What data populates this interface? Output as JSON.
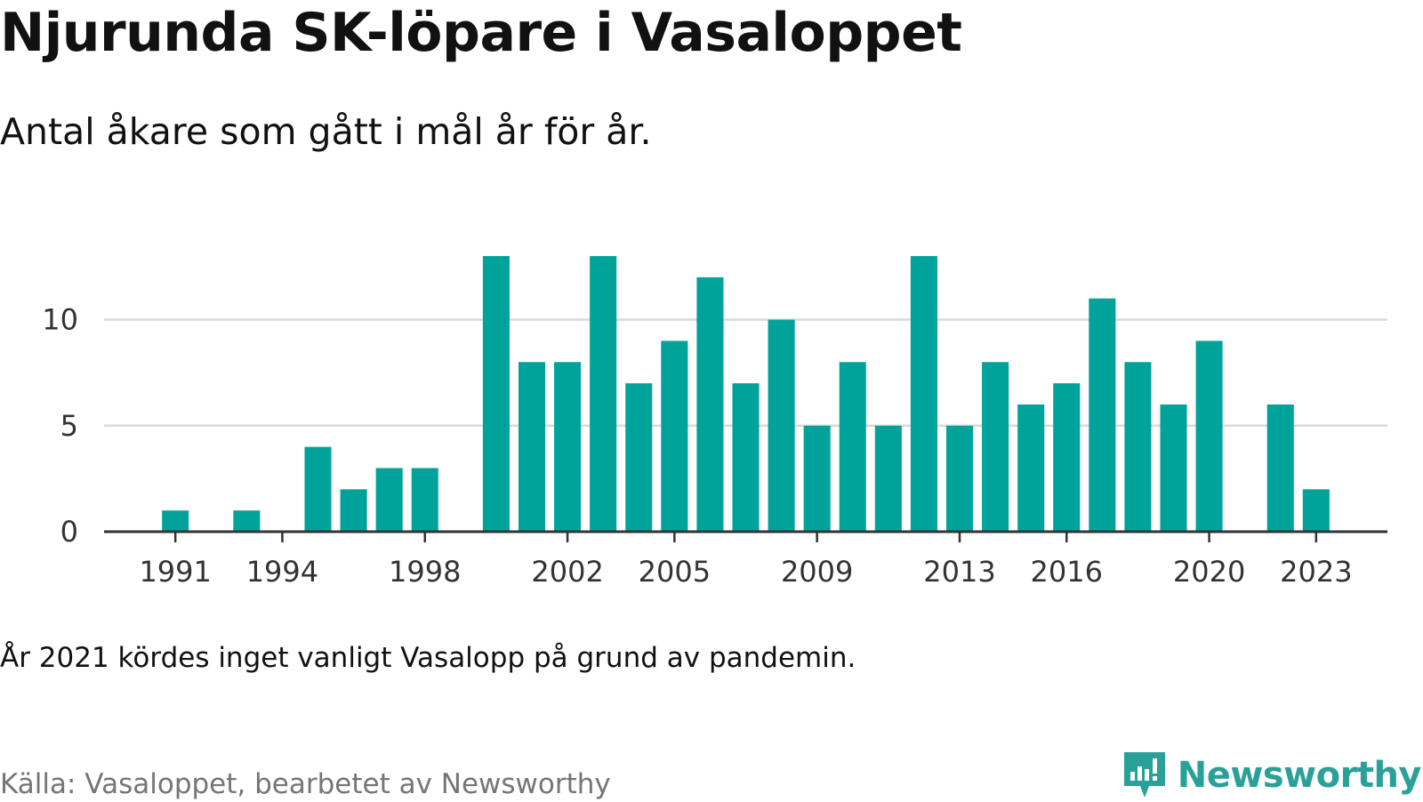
{
  "title": "Njurunda SK-löpare i Vasaloppet",
  "subtitle": "Antal åkare som gått i mål år för år.",
  "note": "År 2021 kördes inget vanligt Vasalopp på grund av pandemin.",
  "source": "Källa: Vasaloppet, bearbetet av Newsworthy",
  "brand": "Newsworthy",
  "colors": {
    "bar": "#00a39a",
    "grid": "#d9d9d9",
    "axis": "#333333",
    "brand": "#2aa198"
  },
  "chart_data": {
    "type": "bar",
    "x": [
      1991,
      1993,
      1995,
      1996,
      1997,
      1998,
      2000,
      2001,
      2002,
      2003,
      2004,
      2005,
      2006,
      2007,
      2008,
      2009,
      2010,
      2011,
      2012,
      2013,
      2014,
      2015,
      2016,
      2017,
      2018,
      2019,
      2020,
      2022,
      2023
    ],
    "values": [
      1,
      1,
      4,
      2,
      3,
      3,
      13,
      8,
      8,
      13,
      7,
      9,
      12,
      7,
      10,
      5,
      8,
      5,
      13,
      5,
      8,
      6,
      7,
      11,
      8,
      6,
      9,
      6,
      2
    ],
    "x_ticks": [
      "1991",
      "1994",
      "1998",
      "2002",
      "2005",
      "2009",
      "2013",
      "2016",
      "2020",
      "2023"
    ],
    "y_ticks": [
      "0",
      "5",
      "10"
    ],
    "xlim": [
      1989,
      2025
    ],
    "ylim": [
      0,
      13
    ],
    "grid": true
  }
}
